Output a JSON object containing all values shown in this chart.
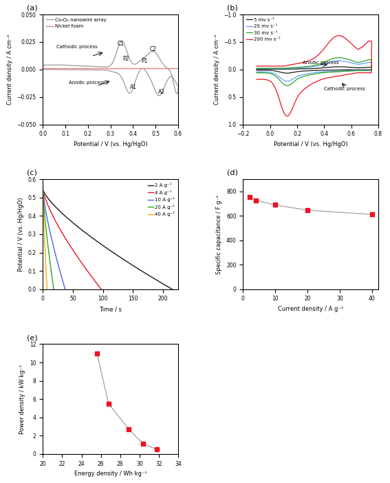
{
  "panel_a": {
    "xlabel": "Potential / V (vs. Hg/HgO)",
    "ylabel": "Current density / A cm⁻²",
    "xlim": [
      0.0,
      0.6
    ],
    "ylim": [
      -0.05,
      0.05
    ],
    "yticks": [
      -0.05,
      -0.025,
      0.0,
      0.025,
      0.05
    ],
    "xticks": [
      0.0,
      0.1,
      0.2,
      0.3,
      0.4,
      0.5,
      0.6
    ],
    "co3o4_color": "#999999",
    "nickel_color": "#f08080",
    "labels": [
      "Co₃O₄ nanowire array",
      "Nickel foam"
    ]
  },
  "panel_b": {
    "xlabel": "Potential / V (vs. Hg/HgO)",
    "ylabel": "Current density / A cm⁻²",
    "xlim": [
      -0.2,
      0.8
    ],
    "ylim": [
      -1.0,
      1.0
    ],
    "yticks": [
      -1.0,
      -0.5,
      0.0,
      0.5,
      1.0
    ],
    "xticks": [
      -0.2,
      0.0,
      0.2,
      0.4,
      0.6,
      0.8
    ],
    "colors": [
      "#1a1a1a",
      "#6699ff",
      "#22aa22",
      "#ee1122"
    ],
    "labels": [
      "5 mv s⁻¹",
      "20 mv s⁻¹",
      "30 mv s⁻¹",
      "200 mv s⁻¹"
    ]
  },
  "panel_c": {
    "xlabel": "Time / s",
    "ylabel": "Potential / V (vs. Hg/HgO)",
    "xlim": [
      0,
      225
    ],
    "ylim": [
      0.0,
      0.6
    ],
    "yticks": [
      0.0,
      0.1,
      0.2,
      0.3,
      0.4,
      0.5,
      0.6
    ],
    "xticks": [
      0,
      50,
      100,
      150,
      200
    ],
    "colors": [
      "#1a1a1a",
      "#ee1122",
      "#4466ee",
      "#22aa22",
      "#ffaa00"
    ],
    "labels": [
      "2 A g⁻¹",
      "4 A g⁻¹",
      "10 A g⁻¹",
      "20 A g⁻¹",
      "40 A g⁻¹"
    ],
    "end_times": [
      215,
      97,
      37,
      18,
      7
    ]
  },
  "panel_d": {
    "xlabel": "Current density / A g⁻¹",
    "ylabel": "Specific capacitance / F g⁻¹",
    "xlim": [
      0,
      42
    ],
    "ylim": [
      0,
      900
    ],
    "yticks": [
      0,
      200,
      400,
      600,
      800
    ],
    "xticks": [
      0,
      10,
      20,
      30,
      40
    ],
    "x_data": [
      2,
      4,
      10,
      20,
      40
    ],
    "y_data": [
      752,
      728,
      690,
      648,
      612
    ],
    "marker_color": "#ee1122",
    "line_color": "#aaaaaa"
  },
  "panel_e": {
    "xlabel": "Energy density / Wh kg⁻¹",
    "ylabel": "Power density / kW kg⁻¹",
    "xlim": [
      20,
      34
    ],
    "ylim": [
      0,
      12
    ],
    "yticks": [
      0,
      2,
      4,
      6,
      8,
      10,
      12
    ],
    "xticks": [
      20,
      22,
      24,
      26,
      28,
      30,
      32,
      34
    ],
    "x_data": [
      25.6,
      26.8,
      28.9,
      30.4,
      31.8
    ],
    "y_data": [
      11.0,
      5.5,
      2.7,
      1.1,
      0.5
    ],
    "marker_color": "#ee1122",
    "line_color": "#aaaaaa"
  }
}
